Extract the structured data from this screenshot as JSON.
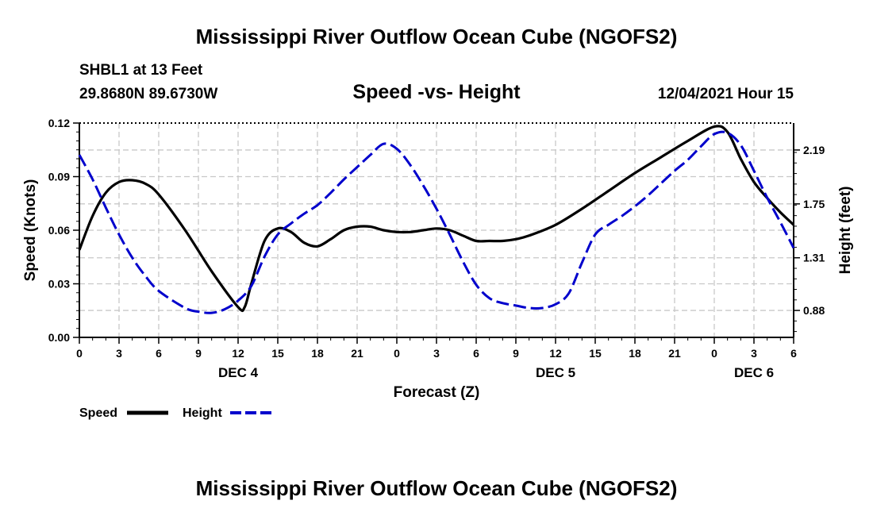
{
  "page": {
    "title_top": "Mississippi River Outflow Ocean Cube (NGOFS2)",
    "title_bottom": "Mississippi River Outflow Ocean Cube (NGOFS2)",
    "station_label": "SHBL1 at 13 Feet",
    "coordinates": "29.8680N  89.6730W",
    "date_label": "12/04/2021 Hour 15"
  },
  "chart_data": {
    "type": "line",
    "title": "Speed -vs- Height",
    "xlabel": "Forecast (Z)",
    "ylabel": "Speed (Knots)",
    "y2label": "Height (feet)",
    "xlim": [
      0,
      54
    ],
    "ylim": [
      0,
      0.12
    ],
    "y2lim": [
      0.66,
      2.41
    ],
    "x_ticks": [
      0,
      3,
      6,
      9,
      12,
      15,
      18,
      21,
      24,
      27,
      30,
      33,
      36,
      39,
      42,
      45,
      48,
      51,
      54
    ],
    "x_tick_labels": [
      "0",
      "3",
      "6",
      "9",
      "12",
      "15",
      "18",
      "21",
      "0",
      "3",
      "6",
      "9",
      "12",
      "15",
      "18",
      "21",
      "0",
      "3",
      "6"
    ],
    "y_ticks": [
      0,
      0.03,
      0.06,
      0.09,
      0.12
    ],
    "y_tick_labels": [
      "0.00",
      "0.03",
      "0.06",
      "0.09",
      "0.12"
    ],
    "y2_ticks": [
      0.88,
      1.31,
      1.75,
      2.19
    ],
    "y2_tick_labels": [
      "0.88",
      "1.31",
      "1.75",
      "2.19"
    ],
    "day_labels": [
      {
        "x": 12,
        "label": "DEC 4"
      },
      {
        "x": 36,
        "label": "DEC 5"
      },
      {
        "x": 51,
        "label": "DEC 6"
      }
    ],
    "grid": true,
    "legend_position": "bottom-left",
    "series": [
      {
        "name": "Speed",
        "axis": "left",
        "color": "#000000",
        "dash": "solid",
        "x": [
          0,
          1,
          2,
          3,
          4,
          5,
          6,
          8,
          10,
          12,
          12.5,
          13,
          14,
          15,
          16,
          17,
          18,
          19,
          20,
          21,
          22,
          23,
          24,
          25,
          26,
          27,
          28,
          29,
          30,
          31,
          32,
          33,
          34,
          36,
          38,
          40,
          42,
          44,
          46,
          48,
          49,
          50,
          51,
          52,
          53,
          54
        ],
        "values": [
          0.049,
          0.068,
          0.081,
          0.087,
          0.088,
          0.086,
          0.08,
          0.06,
          0.037,
          0.017,
          0.017,
          0.03,
          0.054,
          0.061,
          0.059,
          0.053,
          0.051,
          0.055,
          0.06,
          0.062,
          0.062,
          0.06,
          0.059,
          0.059,
          0.06,
          0.061,
          0.06,
          0.057,
          0.054,
          0.054,
          0.054,
          0.055,
          0.057,
          0.063,
          0.072,
          0.082,
          0.092,
          0.101,
          0.11,
          0.118,
          0.115,
          0.1,
          0.087,
          0.078,
          0.07,
          0.063
        ]
      },
      {
        "name": "Height",
        "axis": "right",
        "color": "#0000cc",
        "dash": "dashed",
        "x": [
          0,
          1,
          2,
          3,
          4,
          5,
          6,
          8,
          9,
          10,
          11,
          12,
          13,
          14,
          15,
          16,
          17,
          18,
          19,
          20,
          21,
          22,
          23,
          24,
          25,
          26,
          27,
          28,
          29,
          30,
          31,
          32,
          33,
          34,
          35,
          36,
          37,
          38,
          39,
          40,
          41,
          42,
          43,
          44,
          45,
          46,
          47,
          48,
          49,
          50,
          51,
          52,
          53,
          54
        ],
        "values": [
          2.15,
          1.95,
          1.72,
          1.5,
          1.31,
          1.16,
          1.04,
          0.9,
          0.87,
          0.86,
          0.89,
          0.96,
          1.08,
          1.32,
          1.5,
          1.59,
          1.67,
          1.74,
          1.84,
          1.95,
          2.05,
          2.15,
          2.24,
          2.2,
          2.07,
          1.9,
          1.71,
          1.5,
          1.28,
          1.09,
          0.98,
          0.94,
          0.92,
          0.9,
          0.9,
          0.93,
          1.02,
          1.27,
          1.5,
          1.58,
          1.65,
          1.73,
          1.82,
          1.92,
          2.02,
          2.11,
          2.22,
          2.32,
          2.33,
          2.23,
          2.02,
          1.8,
          1.6,
          1.39
        ]
      }
    ]
  }
}
